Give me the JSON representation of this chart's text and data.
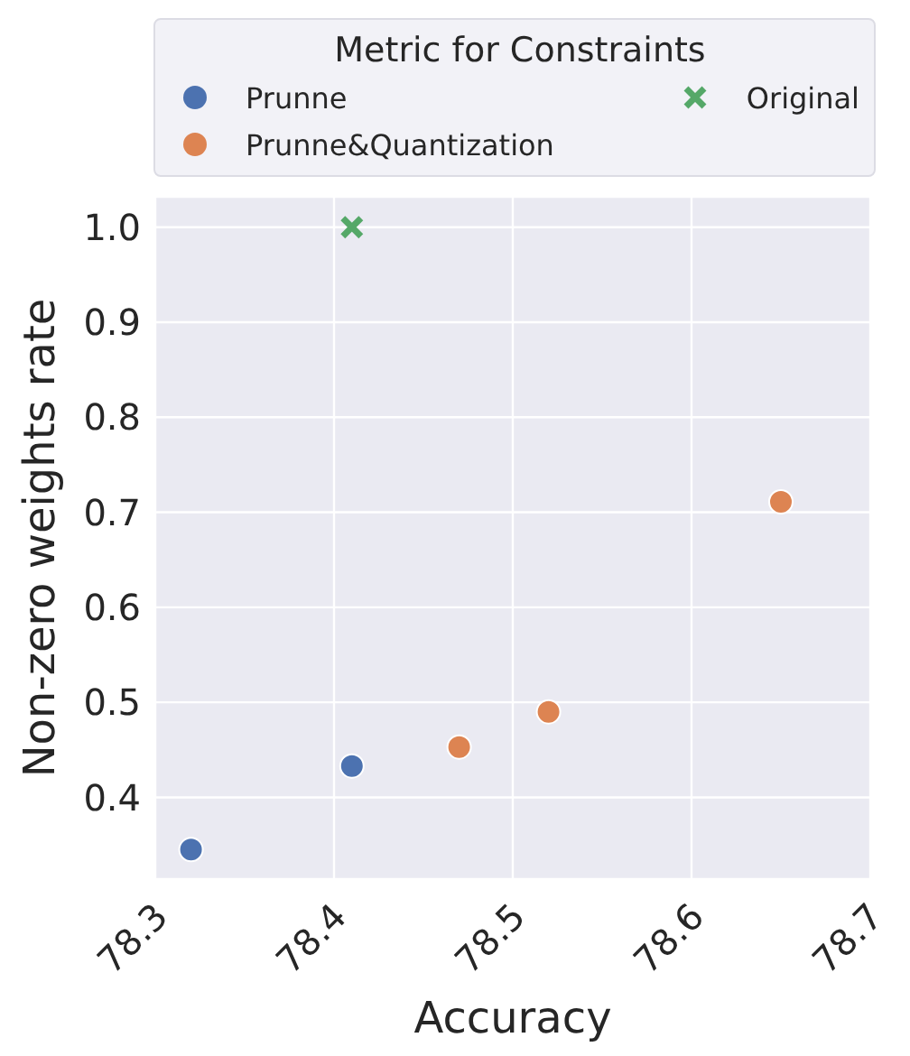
{
  "chart_data": {
    "type": "scatter",
    "xlabel": "Accuracy",
    "ylabel": "Non-zero weights rate",
    "legend_title": "Metric for Constraints",
    "xlim": [
      78.3,
      78.7
    ],
    "xticks": [
      78.3,
      78.4,
      78.5,
      78.6,
      78.7
    ],
    "ylim": [
      0.314,
      1.032
    ],
    "yticks": [
      0.4,
      0.5,
      0.6,
      0.7,
      0.8,
      0.9,
      {
        "value": 1,
        "label": "1.0"
      }
    ],
    "grid": true,
    "legend": "top",
    "series": [
      {
        "name": "Prunne",
        "color": "#4c72b0",
        "marker": "circle",
        "x": [
          78.32,
          78.41
        ],
        "values": [
          0.345,
          0.433
        ]
      },
      {
        "name": "Prunne&Quantization",
        "color": "#dd8452",
        "marker": "circle",
        "x": [
          78.47,
          78.52,
          78.65
        ],
        "values": [
          0.453,
          0.49,
          0.711
        ]
      },
      {
        "name": "Original",
        "color": "#55a868",
        "marker": "cross",
        "x": [
          78.41
        ],
        "values": [
          1.0
        ]
      }
    ]
  }
}
